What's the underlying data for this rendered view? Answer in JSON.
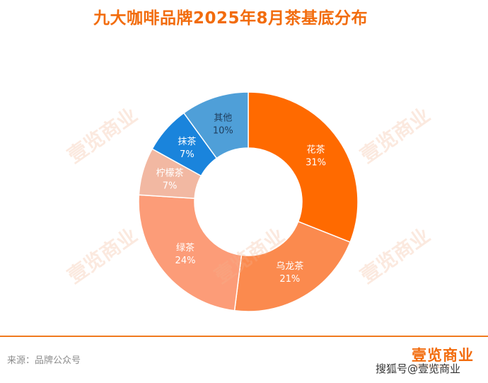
{
  "chart_data": {
    "type": "pie",
    "donut": true,
    "title": "九大咖啡品牌2025年8月茶基底分布",
    "categories": [
      "花茶",
      "乌龙茶",
      "绿茶",
      "柠檬茶",
      "抹茶",
      "其他"
    ],
    "values": [
      31,
      21,
      24,
      7,
      7,
      10
    ],
    "value_labels": [
      "31%",
      "21%",
      "24%",
      "7%",
      "7%",
      "10%"
    ],
    "colors": [
      "#ff6a00",
      "#fb8a4e",
      "#fc9c78",
      "#f2b8a2",
      "#1a84dc",
      "#4f9fd8"
    ],
    "legend": "none"
  },
  "watermark": "壹览商业",
  "footer": {
    "source": "来源：品牌公众号",
    "brand": "壹览商业",
    "brand_url": "yilantop.com",
    "credit": "搜狐号@壹览商业"
  }
}
